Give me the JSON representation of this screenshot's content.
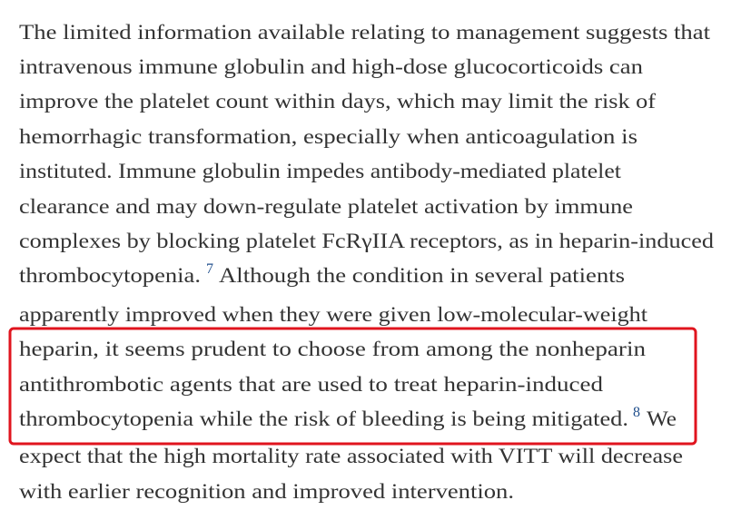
{
  "paragraph": {
    "lines": [
      "The limited information available relating to management suggests that",
      "intravenous immune globulin and high-dose glucocorticoids can",
      "improve the platelet count within days, which may limit the risk of",
      "hemorrhagic transformation, especially when anticoagulation is",
      "instituted. Immune globulin impedes antibody-mediated platelet",
      "clearance and may down-regulate platelet activation by immune",
      "complexes by blocking platelet FcRγIIA receptors, as in heparin-induced",
      {
        "before": "thrombocytopenia.",
        "ref": "7",
        "after": "Although the condition in several patients"
      },
      "apparently improved when they were given low-molecular-weight",
      "heparin, it seems prudent to choose from among the nonheparin",
      "antithrombotic agents that are used to treat heparin-induced",
      {
        "before": "thrombocytopenia while the risk of bleeding is being mitigated.",
        "ref": "8",
        "after": "We"
      },
      "expect that the high mortality rate associated with VITT will decrease",
      "with earlier recognition and improved intervention."
    ]
  }
}
